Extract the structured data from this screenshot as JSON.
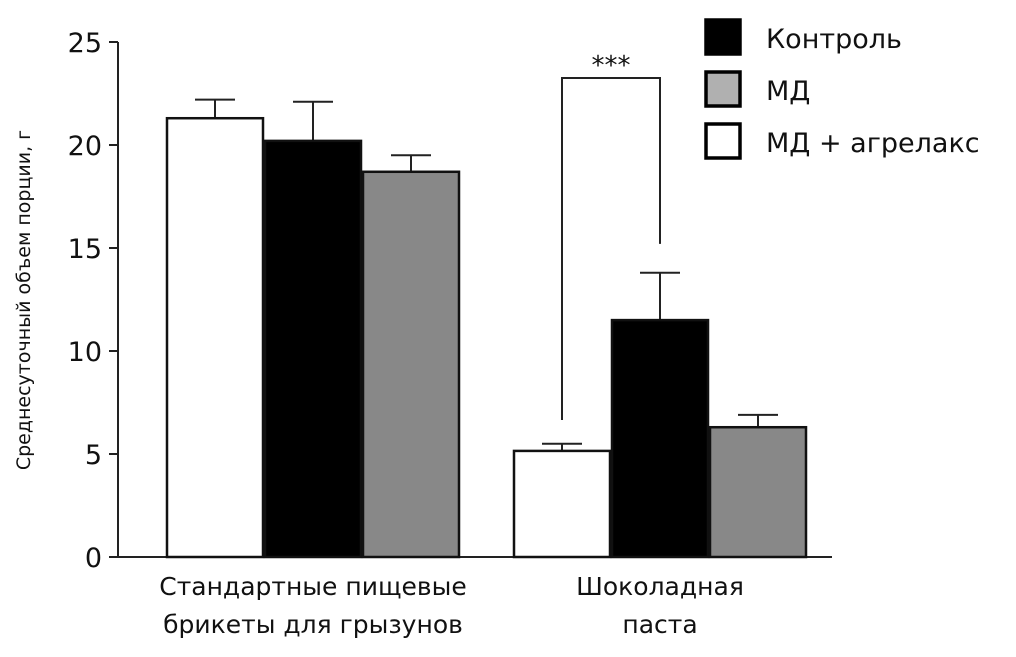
{
  "chart_data": {
    "type": "bar",
    "title": "",
    "xlabel": "",
    "ylabel": "Среднесуточный объем порции, г",
    "ylim": [
      0,
      25
    ],
    "yticks": [
      "0",
      "5",
      "10",
      "15",
      "20",
      "25"
    ],
    "grid": false,
    "legend_position": "top-right",
    "categories": [
      [
        "Стандартные пищевые",
        "брикеты для грызунов"
      ],
      [
        "Шоколадная",
        "паста"
      ]
    ],
    "bar_order": [
      "МД + агрелакс",
      "Контроль",
      "МД"
    ],
    "series": [
      {
        "name": "МД + агрелакс",
        "color": "#ffffff",
        "legend_color": "#ffffff",
        "values": [
          21.3,
          5.15
        ],
        "errors": [
          0.9,
          0.35
        ]
      },
      {
        "name": "Контроль",
        "color": "#000000",
        "legend_color": "#000000",
        "values": [
          20.2,
          11.5
        ],
        "errors": [
          1.9,
          2.3
        ]
      },
      {
        "name": "МД",
        "color": "#888888",
        "legend_color": "#b0b0b0",
        "values": [
          18.7,
          6.3
        ],
        "errors": [
          0.8,
          0.6
        ]
      }
    ],
    "legend": [
      "Контроль",
      "МД",
      "МД + агрелакс"
    ],
    "annotations": [
      {
        "text": "***",
        "category": 1,
        "from_series": 0,
        "to_series": 1,
        "bracket_y": 23.25,
        "left_leg_bottom": 6.65,
        "right_leg_bottom": 15.2
      }
    ]
  }
}
